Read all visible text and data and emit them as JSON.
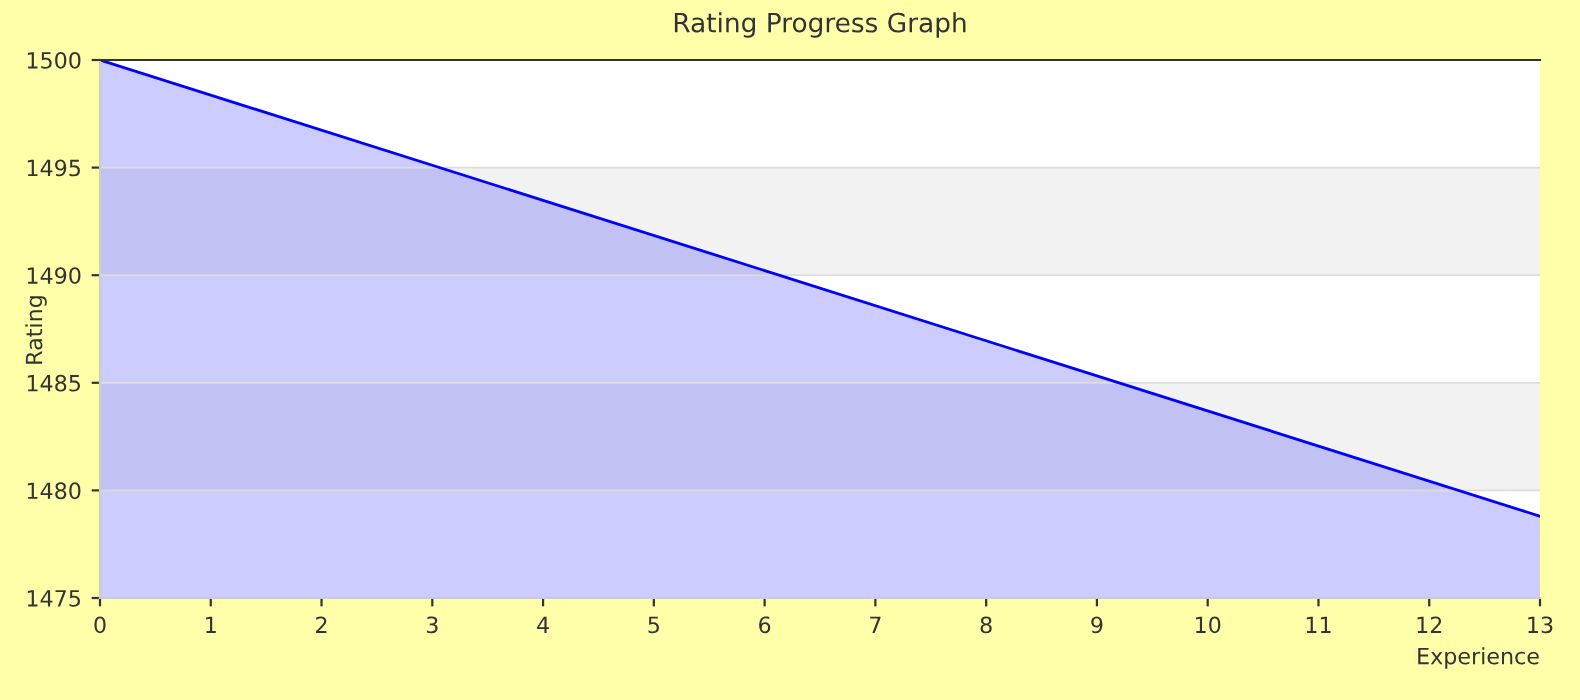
{
  "chart_data": {
    "type": "area",
    "title": "Rating Progress Graph",
    "xlabel": "Experience",
    "ylabel": "Rating",
    "x": [
      0,
      13
    ],
    "series": [
      {
        "color": "#0000ff",
        "values": [
          1500,
          1478.8
        ]
      }
    ],
    "xlim": [
      0,
      13
    ],
    "xticks": [
      0,
      1,
      2,
      3,
      4,
      5,
      6,
      7,
      8,
      9,
      10,
      11,
      12,
      13
    ],
    "ylim": [
      1475,
      1500
    ],
    "yticks": [
      1475,
      1480,
      1485,
      1490,
      1495,
      1500
    ],
    "bands": [
      {
        "axis": "y",
        "from": 1480,
        "to": 1485,
        "color": "#f2f2f2"
      },
      {
        "axis": "y",
        "from": 1490,
        "to": 1495,
        "color": "#f2f2f2"
      }
    ],
    "grid": "y",
    "legend": false
  }
}
